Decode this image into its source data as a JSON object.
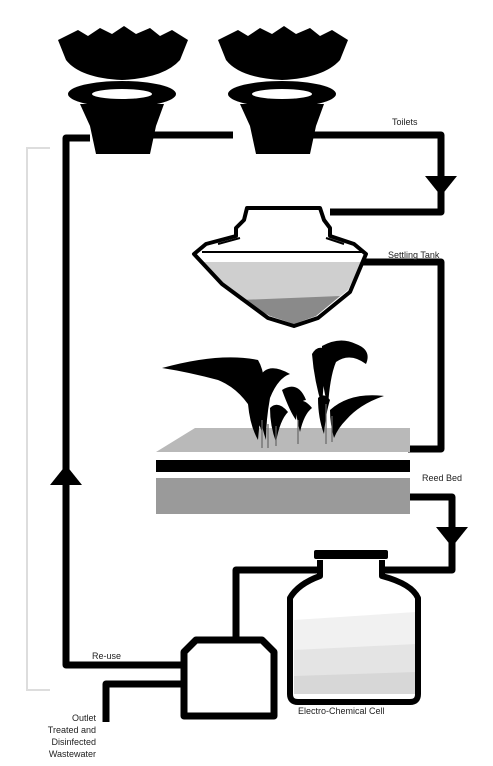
{
  "labels": {
    "toilets": "Toilets",
    "settling_tank": "Settling Tank",
    "reed_bed": "Reed Bed",
    "electro_chemical_cell": "Electro-Chemical Cell",
    "reuse": "Re-use",
    "outlet": [
      "Outlet",
      "Treated and",
      "Disinfected",
      "Wastewater"
    ]
  },
  "colors": {
    "pipe": "#000000",
    "fill": "#ffffff",
    "sediment_light": "#cfcfcf",
    "sediment_dark": "#8a8a8a",
    "reed_surface": "#b9b9b9",
    "reed_gravel": "#9a9a9a",
    "bracket": "#dddddd"
  }
}
